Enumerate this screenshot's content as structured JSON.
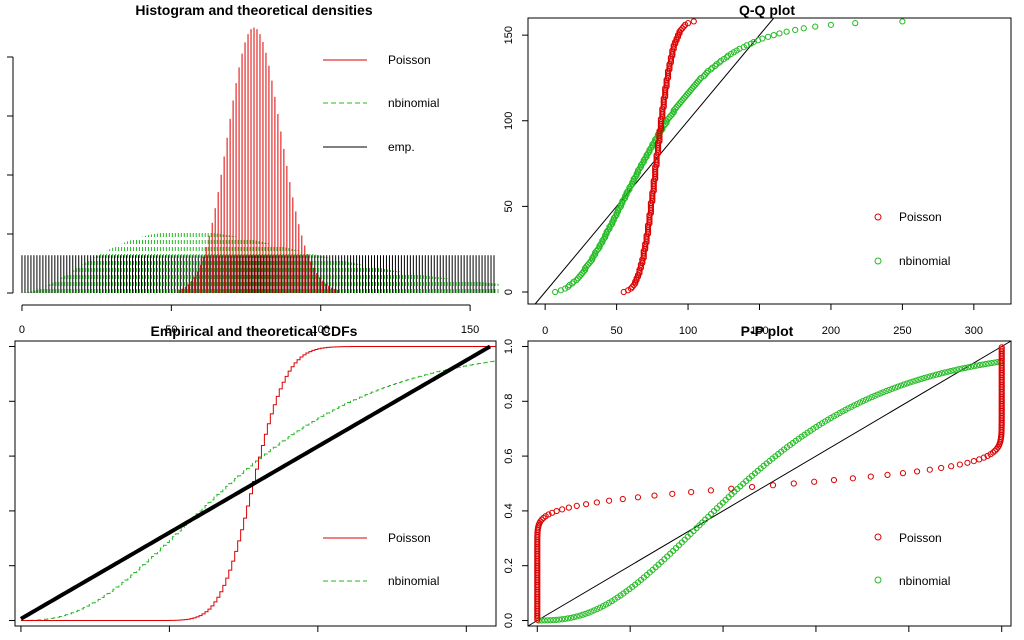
{
  "colors": {
    "poisson": "#dd0000",
    "nbinomial": "#22bb22",
    "emp": "#000000"
  },
  "legend": {
    "poisson": "Poisson",
    "nbinomial": "nbinomial",
    "emp": "emp."
  },
  "chart_data": [
    {
      "id": "hist",
      "type": "bar",
      "title": "Histogram and theoretical densities",
      "xlabel": "",
      "ylabel": "",
      "xlim": [
        -2,
        159
      ],
      "x_ticks": [
        0,
        50,
        100,
        150
      ],
      "y_ticks_unlabeled": 5,
      "legend_position": "top-right",
      "legend": [
        "Poisson",
        "nbinomial",
        "emp."
      ],
      "empirical": {
        "x_from": 0,
        "x_to": 158,
        "x_step": 1,
        "density": 0.0064
      },
      "poisson": {
        "lambda": 78.5
      },
      "nbinomial": {
        "mu": 78.5,
        "size": 3.3
      },
      "poisson_peak_density": 0.045
    },
    {
      "id": "qq",
      "type": "scatter",
      "title": "Q-Q plot",
      "xlabel": "",
      "ylabel": "",
      "xlim": [
        -12,
        326
      ],
      "ylim": [
        -7,
        160
      ],
      "x_ticks": [
        0,
        50,
        100,
        150,
        200,
        250,
        300
      ],
      "y_ticks": [
        0,
        50,
        100,
        150
      ],
      "legend_position": "bottom-right",
      "legend": [
        "Poisson",
        "nbinomial"
      ],
      "n": 159,
      "poisson": {
        "lambda": 78.5
      },
      "nbinomial": {
        "mu": 78.5,
        "size": 3.3
      }
    },
    {
      "id": "cdf",
      "type": "line",
      "title": "Empirical and theoretical CDFs",
      "xlabel": "",
      "ylabel": "",
      "xlim": [
        -2,
        160
      ],
      "ylim": [
        -0.02,
        1.02
      ],
      "x_ticks_unlabeled": 4,
      "y_ticks_unlabeled": 6,
      "legend_position": "bottom-right",
      "legend": [
        "Poisson",
        "nbinomial"
      ],
      "empirical": {
        "x_from": 0,
        "x_to": 158
      },
      "poisson": {
        "lambda": 78.5
      },
      "nbinomial": {
        "mu": 78.5,
        "size": 3.3
      }
    },
    {
      "id": "pp",
      "type": "scatter",
      "title": "P-P plot",
      "xlabel": "",
      "ylabel": "",
      "xlim": [
        -0.02,
        1.02
      ],
      "ylim": [
        -0.02,
        1.02
      ],
      "y_ticks": [
        "0.0",
        "0.2",
        "0.4",
        "0.6",
        "0.8",
        "1.0"
      ],
      "x_ticks_unlabeled": 6,
      "legend_position": "bottom-right",
      "legend": [
        "Poisson",
        "nbinomial"
      ],
      "n": 159,
      "poisson": {
        "lambda": 78.5
      },
      "nbinomial": {
        "mu": 78.5,
        "size": 3.3
      }
    }
  ]
}
